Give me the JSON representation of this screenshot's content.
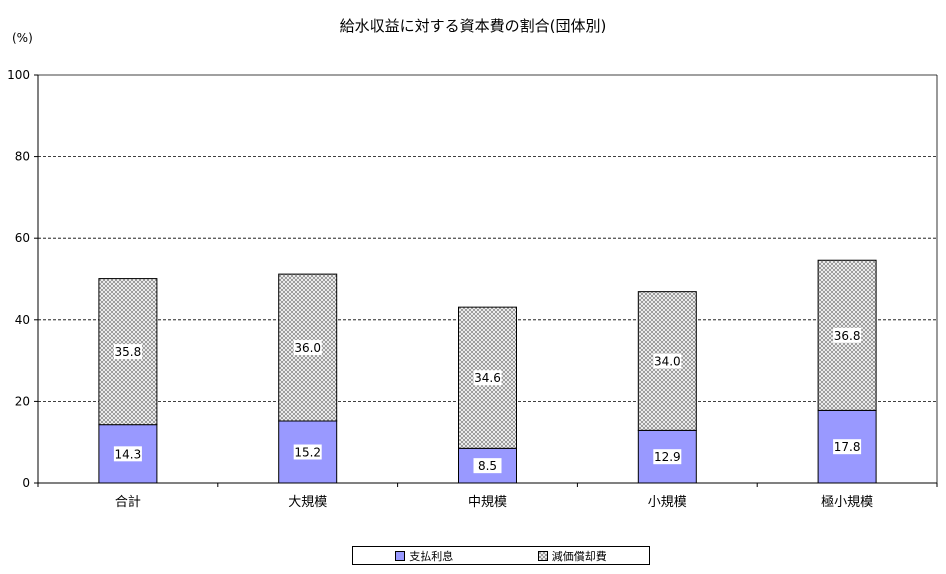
{
  "chart_data": {
    "type": "bar",
    "stacked": true,
    "title": "給水収益に対する資本費の割合(団体別)",
    "unit_label": "(%)",
    "categories": [
      "合計",
      "大規模",
      "中規模",
      "小規模",
      "極小規模"
    ],
    "series": [
      {
        "name": "支払利息",
        "values": [
          14.3,
          15.2,
          8.5,
          12.9,
          17.8
        ],
        "color": "#9999ff",
        "pattern": "solid"
      },
      {
        "name": "減価償却費",
        "values": [
          35.8,
          36.0,
          34.6,
          34.0,
          36.8
        ],
        "color": "#c0c0c0",
        "pattern": "crosshatch"
      }
    ],
    "ylim": [
      0,
      100
    ],
    "yticks": [
      0,
      20,
      40,
      60,
      80,
      100
    ],
    "grid": true,
    "legend_position": "bottom"
  }
}
